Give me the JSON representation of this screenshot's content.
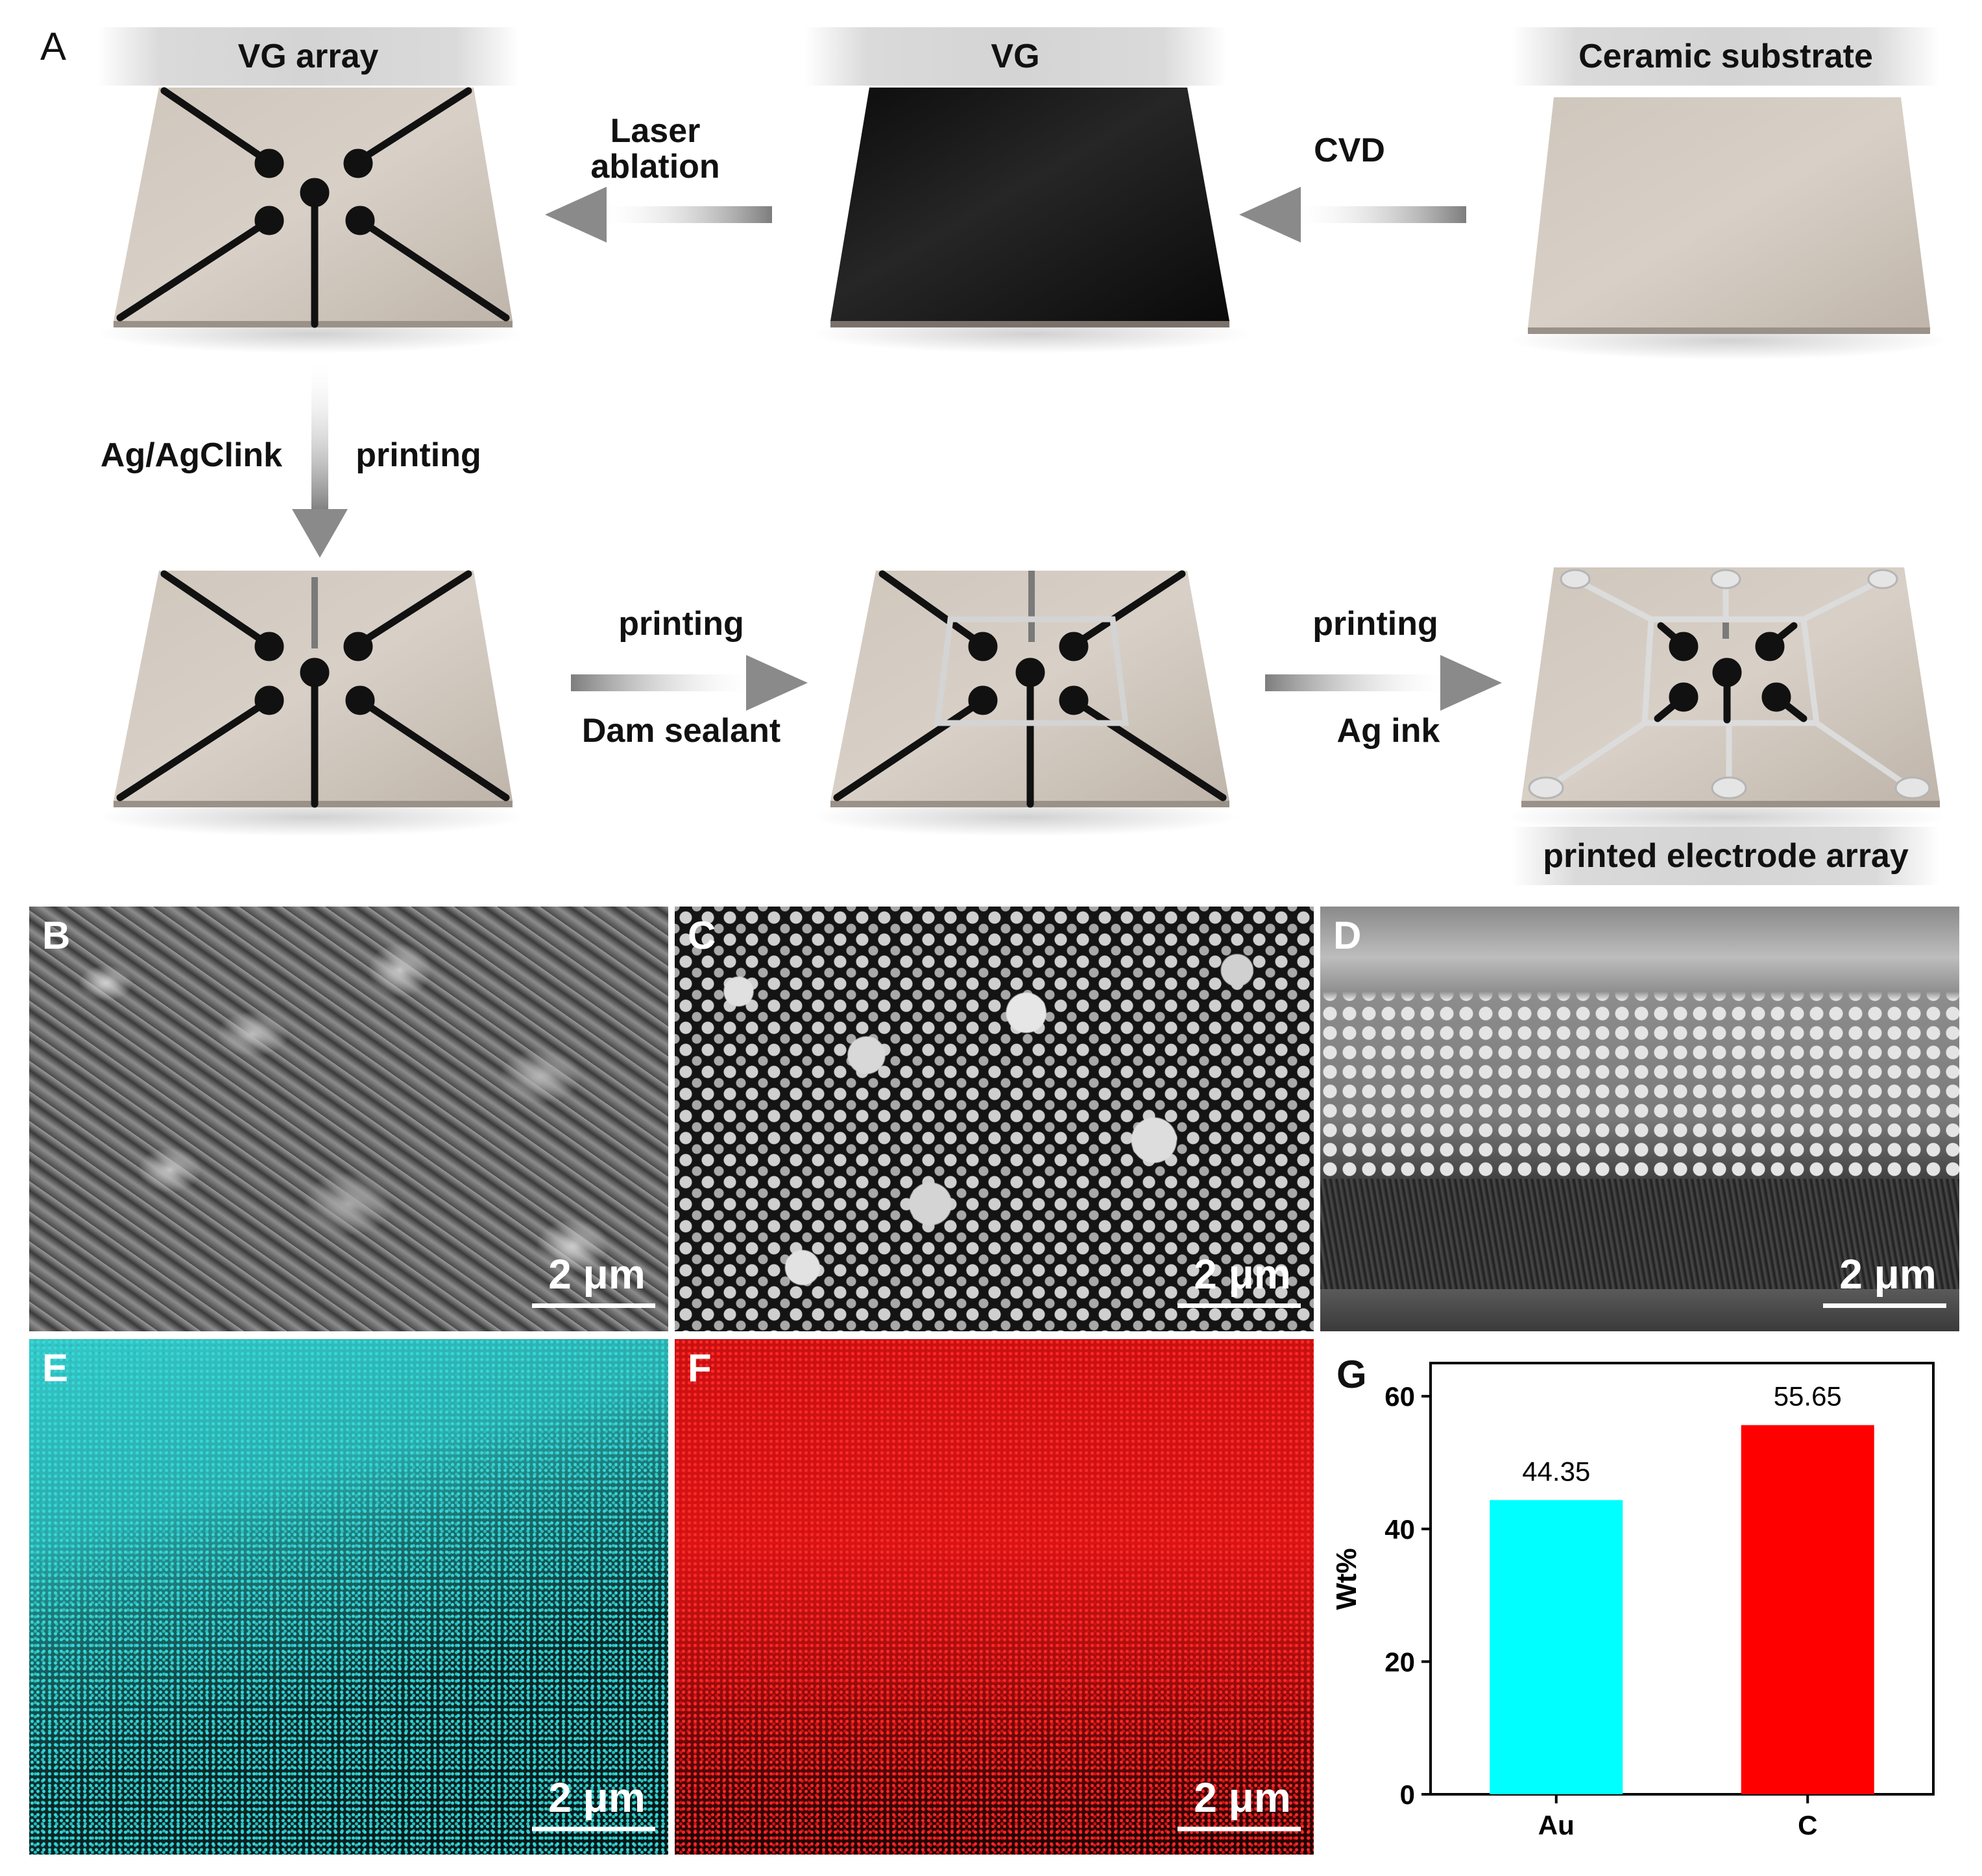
{
  "panels": {
    "a": "A",
    "b": "B",
    "c": "C",
    "d": "D",
    "e": "E",
    "f": "F",
    "g": "G"
  },
  "schematic": {
    "headers": {
      "vg_array": "VG array",
      "vg": "VG",
      "ceramic": "Ceramic substrate"
    },
    "steps": {
      "laser_1": "Laser",
      "laser_2": "ablation",
      "cvd": "CVD",
      "ink_left": "Ag/AgClink",
      "ink_right": "printing",
      "dam_top": "printing",
      "dam_bottom": "Dam sealant",
      "ag_top": "printing",
      "ag_bottom": "Ag ink"
    },
    "final_label": "printed electrode array"
  },
  "micrographs": {
    "scale_b": "2 μm",
    "scale_c": "2 μm",
    "scale_d": "2 μm",
    "scale_e": "2 μm",
    "scale_f": "2 μm"
  },
  "colors": {
    "substrate": "#c9bfb4",
    "vg_black": "#141414",
    "arrow_gray": "#8a8a8a",
    "au_cyan": "#00ffff",
    "c_red": "#ff0000",
    "eds_cyan": "#2fc9c9",
    "eds_red": "#e01010"
  },
  "chart_data": {
    "type": "bar",
    "categories": [
      "Au",
      "C"
    ],
    "values": [
      44.35,
      55.65
    ],
    "data_labels": [
      "44.35",
      "55.65"
    ],
    "ylabel": "Wt%",
    "ylim": [
      0,
      65
    ],
    "yticks": [
      "0",
      "20",
      "40",
      "60"
    ],
    "grid": false,
    "colors": [
      "#00ffff",
      "#ff0000"
    ]
  }
}
